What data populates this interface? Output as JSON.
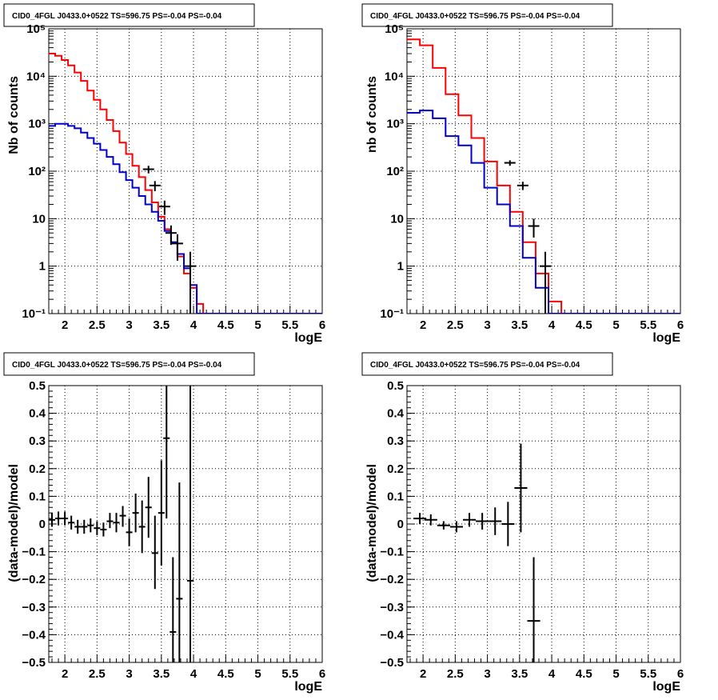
{
  "chart_data": [
    {
      "type": "line",
      "title": "CID0_4FGL J0433.0+0522 TS=596.75 PS=-0.04 PS=-0.04",
      "xlabel": "logE",
      "ylabel": "Nb of counts",
      "xlim": [
        1.75,
        6.0
      ],
      "ylim": [
        0.1,
        100000
      ],
      "yscale": "log",
      "grid": true,
      "xticks": [
        "2",
        "2.5",
        "3",
        "3.5",
        "4",
        "4.5",
        "5",
        "5.5",
        "6"
      ],
      "yticks": [
        "10⁻¹",
        "1",
        "10",
        "10²",
        "10³",
        "10⁴",
        "10⁵"
      ],
      "bin_edges": [
        1.75,
        1.85,
        1.95,
        2.05,
        2.15,
        2.25,
        2.35,
        2.45,
        2.55,
        2.65,
        2.75,
        2.85,
        2.95,
        3.05,
        3.15,
        3.25,
        3.35,
        3.45,
        3.55,
        3.65,
        3.75,
        3.85,
        3.95,
        4.05,
        4.15,
        4.25,
        4.35,
        4.45,
        4.55,
        4.65,
        4.75,
        4.85,
        4.95,
        5.05,
        5.15,
        5.25,
        5.35,
        5.45,
        5.55,
        5.65,
        5.75,
        5.85,
        5.95,
        6.0
      ],
      "series": [
        {
          "color": "#ff0000",
          "style": "step",
          "values": [
            30000,
            27000,
            22000,
            17000,
            12000,
            8000,
            5000,
            3200,
            2000,
            1200,
            700,
            400,
            230,
            130,
            75,
            40,
            22,
            11,
            6,
            3.2,
            1.6,
            0.7,
            0.35,
            0.16,
            0.08,
            0.08,
            0.08,
            0.08,
            0.08,
            0.08,
            0.08,
            0.08,
            0.08,
            0.08,
            0.08,
            0.08,
            0.08,
            0.08,
            0.08,
            0.08,
            0.08,
            0.08,
            0.08
          ]
        },
        {
          "color": "#0000cc",
          "style": "step",
          "values": [
            900,
            1000,
            1000,
            900,
            800,
            650,
            500,
            380,
            280,
            200,
            140,
            95,
            65,
            45,
            30,
            20,
            14,
            9,
            5.5,
            3.2,
            1.8,
            0.9,
            0.4,
            0.1,
            0.1,
            0.1,
            0.1,
            0.1,
            0.1,
            0.1,
            0.1,
            0.1,
            0.1,
            0.1,
            0.1,
            0.1,
            0.1,
            0.1,
            0.1,
            0.1,
            0.1,
            0.1,
            0.1
          ]
        },
        {
          "color": "#000000",
          "style": "errorbar",
          "points": [
            {
              "x": 3.3,
              "y": 110,
              "lo": 90,
              "hi": 130
            },
            {
              "x": 3.4,
              "y": 50,
              "lo": 38,
              "hi": 62
            },
            {
              "x": 3.55,
              "y": 18,
              "lo": 12,
              "hi": 24
            },
            {
              "x": 3.65,
              "y": 5,
              "lo": 2.8,
              "hi": 7.2
            },
            {
              "x": 3.75,
              "y": 3,
              "lo": 1.3,
              "hi": 4.7
            },
            {
              "x": 3.95,
              "y": 1,
              "lo": 0.09,
              "hi": 2.0
            }
          ]
        }
      ]
    },
    {
      "type": "line",
      "title": "CID0_4FGL J0433.0+0522 TS=596.75 PS=-0.04 PS=-0.04",
      "xlabel": "logE",
      "ylabel": "nb of counts",
      "xlim": [
        1.75,
        6.0
      ],
      "ylim": [
        0.1,
        100000
      ],
      "yscale": "log",
      "grid": true,
      "xticks": [
        "2",
        "2.5",
        "3",
        "3.5",
        "4",
        "4.5",
        "5",
        "5.5",
        "6"
      ],
      "yticks": [
        "10⁻¹",
        "1",
        "10",
        "10²",
        "10³",
        "10⁴",
        "10⁵"
      ],
      "bin_edges": [
        1.75,
        1.95,
        2.15,
        2.35,
        2.55,
        2.75,
        2.95,
        3.15,
        3.35,
        3.55,
        3.75,
        3.95,
        4.15,
        4.35,
        4.55,
        4.75,
        4.95,
        5.15,
        5.35,
        5.55,
        5.75,
        5.95,
        6.0
      ],
      "series": [
        {
          "color": "#ff0000",
          "style": "step",
          "values": [
            60000,
            45000,
            15000,
            4200,
            1500,
            500,
            160,
            50,
            14,
            3.2,
            0.7,
            0.18,
            0.09,
            0.09,
            0.09,
            0.09,
            0.09,
            0.09,
            0.09,
            0.09,
            0.09,
            0.09
          ]
        },
        {
          "color": "#0000cc",
          "style": "step",
          "values": [
            1700,
            1900,
            1300,
            550,
            350,
            150,
            45,
            20,
            7,
            1.5,
            0.35,
            0.1,
            0.1,
            0.1,
            0.1,
            0.1,
            0.1,
            0.1,
            0.1,
            0.1,
            0.1,
            0.1
          ]
        },
        {
          "color": "#000000",
          "style": "errorbar",
          "points": [
            {
              "x": 3.35,
              "y": 150,
              "lo": 130,
              "hi": 170
            },
            {
              "x": 3.55,
              "y": 50,
              "lo": 40,
              "hi": 60
            },
            {
              "x": 3.72,
              "y": 7,
              "lo": 4,
              "hi": 10
            },
            {
              "x": 3.9,
              "y": 1.0,
              "lo": 0.09,
              "hi": 2.0
            }
          ]
        }
      ]
    },
    {
      "type": "scatter",
      "title": "CID0_4FGL J0433.0+0522 TS=596.75 PS=-0.04 PS=-0.04",
      "xlabel": "logE",
      "ylabel": "(data-model)/model",
      "xlim": [
        1.75,
        6.0
      ],
      "ylim": [
        -0.5,
        0.5
      ],
      "grid": true,
      "xticks": [
        "2",
        "2.5",
        "3",
        "3.5",
        "4",
        "4.5",
        "5",
        "5.5",
        "6"
      ],
      "yticks": [
        "−0.5",
        "−0.4",
        "−0.3",
        "−0.2",
        "−0.1",
        "0",
        "0.1",
        "0.2",
        "0.3",
        "0.4",
        "0.5"
      ],
      "points": [
        {
          "x": 1.8,
          "y": 0.015,
          "lo": -0.01,
          "hi": 0.04,
          "xe": 0.05
        },
        {
          "x": 1.9,
          "y": 0.02,
          "lo": -0.005,
          "hi": 0.045,
          "xe": 0.05
        },
        {
          "x": 2.0,
          "y": 0.02,
          "lo": -0.005,
          "hi": 0.045,
          "xe": 0.05
        },
        {
          "x": 2.1,
          "y": 0.005,
          "lo": -0.02,
          "hi": 0.03,
          "xe": 0.05
        },
        {
          "x": 2.2,
          "y": -0.01,
          "lo": -0.035,
          "hi": 0.015,
          "xe": 0.05
        },
        {
          "x": 2.3,
          "y": -0.01,
          "lo": -0.035,
          "hi": 0.015,
          "xe": 0.05
        },
        {
          "x": 2.4,
          "y": -0.005,
          "lo": -0.03,
          "hi": 0.02,
          "xe": 0.05
        },
        {
          "x": 2.5,
          "y": -0.015,
          "lo": -0.04,
          "hi": 0.01,
          "xe": 0.05
        },
        {
          "x": 2.6,
          "y": -0.02,
          "lo": -0.045,
          "hi": 0.005,
          "xe": 0.05
        },
        {
          "x": 2.7,
          "y": 0.01,
          "lo": -0.015,
          "hi": 0.04,
          "xe": 0.05
        },
        {
          "x": 2.8,
          "y": 0.005,
          "lo": -0.03,
          "hi": 0.04,
          "xe": 0.05
        },
        {
          "x": 2.9,
          "y": 0.03,
          "lo": -0.01,
          "hi": 0.065,
          "xe": 0.05
        },
        {
          "x": 3.0,
          "y": -0.03,
          "lo": -0.08,
          "hi": 0.02,
          "xe": 0.05
        },
        {
          "x": 3.1,
          "y": 0.04,
          "lo": -0.03,
          "hi": 0.11,
          "xe": 0.05
        },
        {
          "x": 3.2,
          "y": -0.01,
          "lo": -0.105,
          "hi": 0.085,
          "xe": 0.05
        },
        {
          "x": 3.3,
          "y": 0.06,
          "lo": -0.05,
          "hi": 0.17,
          "xe": 0.05
        },
        {
          "x": 3.4,
          "y": -0.105,
          "lo": -0.235,
          "hi": 0.03,
          "xe": 0.05
        },
        {
          "x": 3.5,
          "y": 0.04,
          "lo": -0.15,
          "hi": 0.23,
          "xe": 0.05
        },
        {
          "x": 3.58,
          "y": 0.31,
          "lo": 0.02,
          "hi": 0.5,
          "xe": 0.05
        },
        {
          "x": 3.68,
          "y": -0.39,
          "lo": -0.5,
          "hi": -0.12,
          "xe": 0.05
        },
        {
          "x": 3.78,
          "y": -0.27,
          "lo": -0.5,
          "hi": 0.15,
          "xe": 0.05
        },
        {
          "x": 3.95,
          "y": -0.205,
          "lo": -0.5,
          "hi": 0.5,
          "xe": 0.05
        }
      ]
    },
    {
      "type": "scatter",
      "title": "CID0_4FGL J0433.0+0522 TS=596.75 PS=-0.04 PS=-0.04",
      "xlabel": "logE",
      "ylabel": "(data-model)/model",
      "xlim": [
        1.75,
        6.0
      ],
      "ylim": [
        -0.5,
        0.5
      ],
      "grid": true,
      "xticks": [
        "2",
        "2.5",
        "3",
        "3.5",
        "4",
        "4.5",
        "5",
        "5.5",
        "6"
      ],
      "yticks": [
        "−0.5",
        "−0.4",
        "−0.3",
        "−0.2",
        "−0.1",
        "0",
        "0.1",
        "0.2",
        "0.3",
        "0.4",
        "0.5"
      ],
      "points": [
        {
          "x": 1.95,
          "y": 0.02,
          "lo": 0.0,
          "hi": 0.04,
          "xe": 0.1
        },
        {
          "x": 2.12,
          "y": 0.015,
          "lo": -0.005,
          "hi": 0.035,
          "xe": 0.1
        },
        {
          "x": 2.32,
          "y": -0.005,
          "lo": -0.02,
          "hi": 0.01,
          "xe": 0.1
        },
        {
          "x": 2.52,
          "y": -0.01,
          "lo": -0.03,
          "hi": 0.01,
          "xe": 0.1
        },
        {
          "x": 2.72,
          "y": 0.015,
          "lo": -0.01,
          "hi": 0.04,
          "xe": 0.1
        },
        {
          "x": 2.92,
          "y": 0.01,
          "lo": -0.02,
          "hi": 0.04,
          "xe": 0.1
        },
        {
          "x": 3.12,
          "y": 0.01,
          "lo": -0.04,
          "hi": 0.06,
          "xe": 0.1
        },
        {
          "x": 3.32,
          "y": 0.0,
          "lo": -0.08,
          "hi": 0.08,
          "xe": 0.1
        },
        {
          "x": 3.52,
          "y": 0.13,
          "lo": -0.03,
          "hi": 0.29,
          "xe": 0.1
        },
        {
          "x": 3.72,
          "y": -0.35,
          "lo": -0.5,
          "hi": -0.12,
          "xe": 0.1
        }
      ]
    }
  ]
}
